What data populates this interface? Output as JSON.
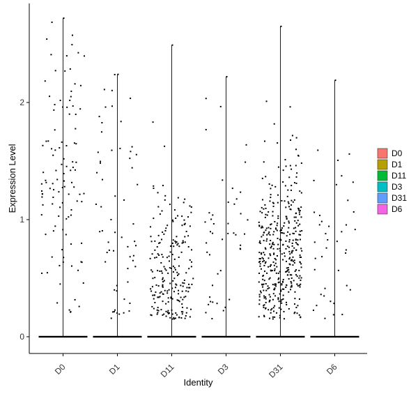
{
  "chart_data": {
    "type": "violin-jitter",
    "title": "",
    "xlabel": "Identity",
    "ylabel": "Expression Level",
    "ylim": [
      -0.15,
      2.85
    ],
    "y_ticks": [
      "0",
      "1",
      "2"
    ],
    "grid": false,
    "legend_position": "right",
    "categories": [
      "D0",
      "D1",
      "D11",
      "D3",
      "D31",
      "D6"
    ],
    "series": [
      {
        "name": "D0",
        "color": "#F8766D",
        "max": 2.72,
        "nonzero_count": 110,
        "mean_nonzero": 1.45,
        "spread_nonzero": 0.75
      },
      {
        "name": "D1",
        "color": "#B79F00",
        "max": 2.24,
        "nonzero_count": 60,
        "mean_nonzero": 0.95,
        "spread_nonzero": 0.6
      },
      {
        "name": "D11",
        "color": "#00BA38",
        "max": 2.49,
        "nonzero_count": 220,
        "mean_nonzero": 0.5,
        "spread_nonzero": 0.35
      },
      {
        "name": "D3",
        "color": "#00BFC4",
        "max": 2.22,
        "nonzero_count": 45,
        "mean_nonzero": 0.75,
        "spread_nonzero": 0.55
      },
      {
        "name": "D31",
        "color": "#619CFF",
        "max": 2.65,
        "nonzero_count": 420,
        "mean_nonzero": 0.7,
        "spread_nonzero": 0.4
      },
      {
        "name": "D6",
        "color": "#F564E3",
        "max": 2.19,
        "nonzero_count": 40,
        "mean_nonzero": 0.7,
        "spread_nonzero": 0.5
      }
    ],
    "legend": [
      "D0",
      "D1",
      "D11",
      "D3",
      "D31",
      "D6"
    ]
  }
}
